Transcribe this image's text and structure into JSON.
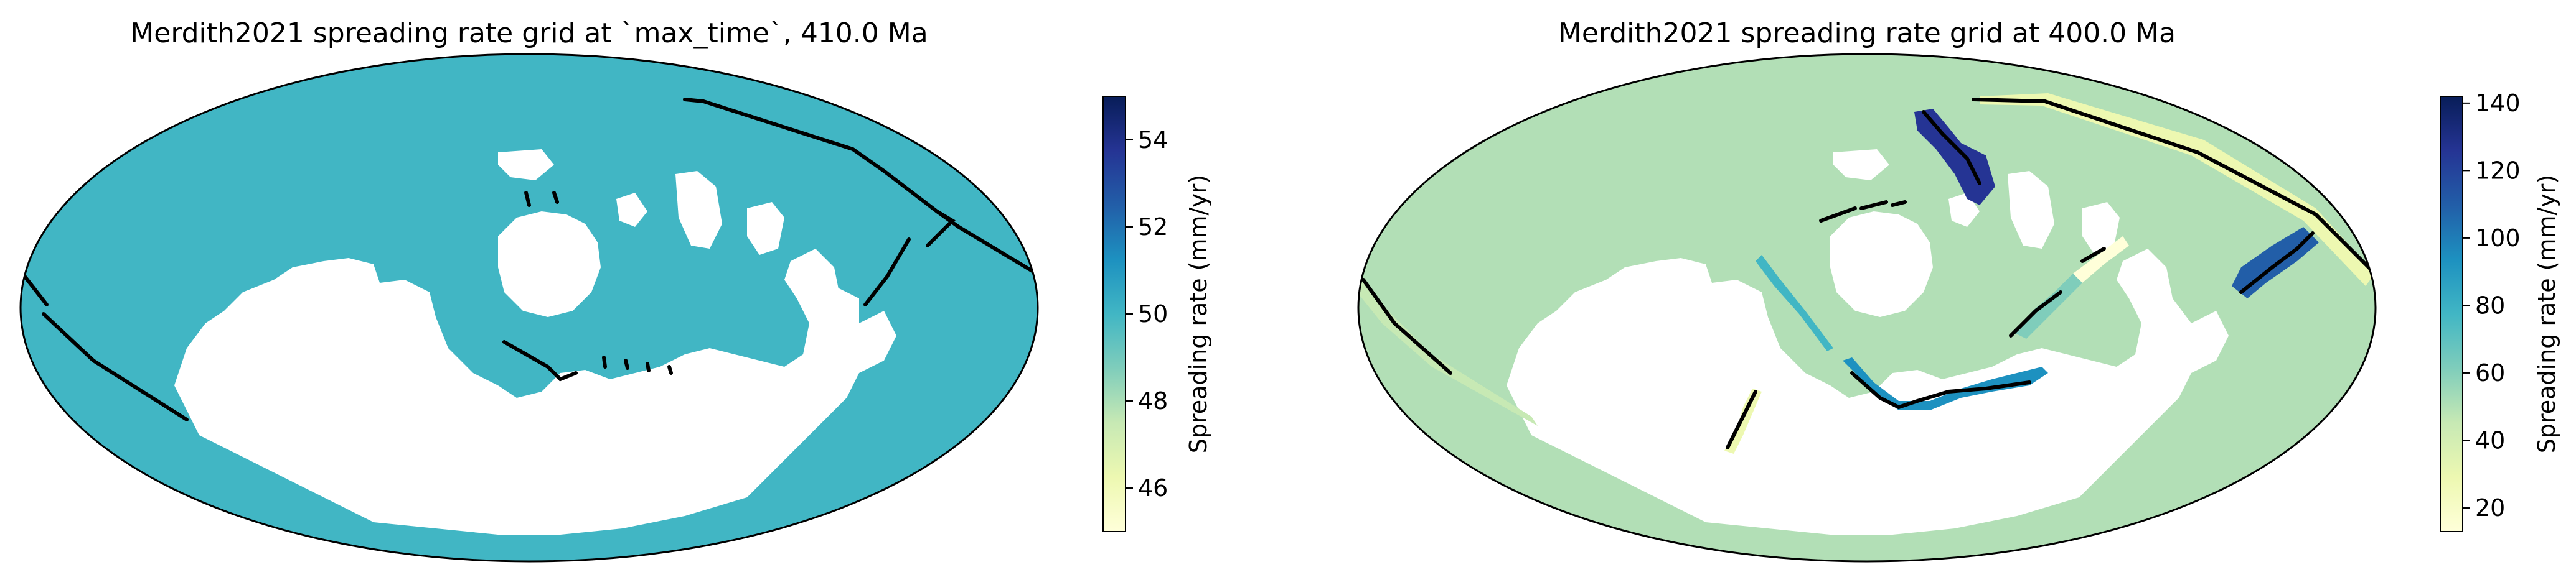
{
  "panels": [
    {
      "title": "Merdith2021 spreading rate grid at `max_time`, 410.0 Ma",
      "ocean_color": "#41b6c4",
      "colorbar": {
        "label": "Spreading rate (mm/yr)",
        "ticks": [
          "46",
          "48",
          "50",
          "52",
          "54"
        ],
        "range": [
          45,
          55
        ],
        "tick_values": [
          46,
          48,
          50,
          52,
          54
        ]
      }
    },
    {
      "title": "Merdith2021 spreading rate grid at 400.0 Ma",
      "ocean_color": "#b2dfb6",
      "colorbar": {
        "label": "Spreading rate (mm/yr)",
        "ticks": [
          "20",
          "40",
          "60",
          "80",
          "100",
          "120",
          "140"
        ],
        "range": [
          13,
          142
        ],
        "tick_values": [
          20,
          40,
          60,
          80,
          100,
          120,
          140
        ]
      }
    }
  ],
  "colormap": {
    "name": "YlGnBu",
    "stops": [
      "#ffffd9",
      "#edf8b1",
      "#c7e9b4",
      "#7fcdbb",
      "#41b6c4",
      "#1d91c0",
      "#225ea8",
      "#253494",
      "#081d58"
    ]
  }
}
